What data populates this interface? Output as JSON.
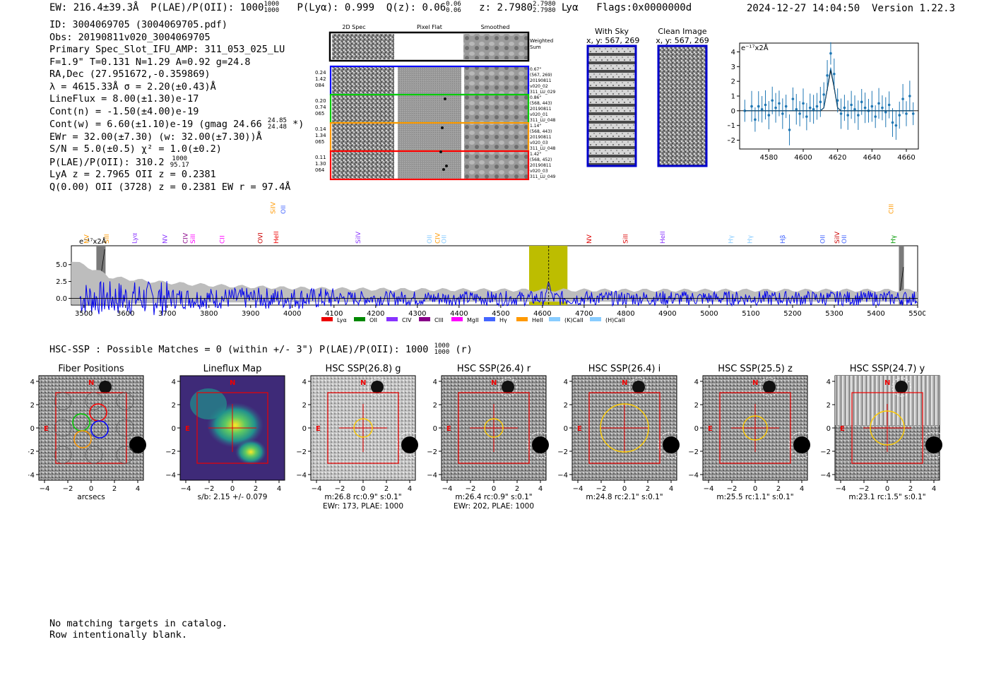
{
  "header": {
    "ew": "EW: 216.4±39.3Å",
    "plae": "P(LAE)/P(OII): 1000",
    "plae_hi": "1000",
    "plae_lo": "1000",
    "plya": "P(Lyα): 0.999",
    "qz": "Q(z): 0.06",
    "qz_hi": "0.06",
    "qz_lo": "0.06",
    "z": "z: 2.7980",
    "z_hi": "2.7980",
    "z_lo": "2.7980",
    "z_line": "Lyα",
    "flags": "Flags:0x0000000d",
    "datetime": "2024-12-27 14:04:50",
    "version": "Version 1.22.3"
  },
  "info": {
    "id": "ID: 3004069705 (3004069705.pdf)",
    "obs": "Obs: 20190811v020_3004069705",
    "primary": "Primary Spec_Slot_IFU_AMP: 311_053_025_LU",
    "fit": "F=1.9\"  T=0.131  N=1.29  A=0.92  g=24.8",
    "radec": "RA,Dec (27.951672,-0.359869)",
    "lambda": "λ = 4615.33Å  σ = 2.20(±0.43)Å",
    "lineflux": "LineFlux = 8.00(±1.30)e-17",
    "contn": "Cont(n) = -1.50(±4.00)e-19",
    "contw": "Cont(w) = 6.60(±1.10)e-19 (gmag 24.66",
    "contw_hi": "24.85",
    "contw_lo": "24.48",
    "contw_end": "*)",
    "ewr": "EWr = 32.00(±7.30) (w: 32.00(±7.30))Å",
    "sn": "S/N = 5.0(±0.5)  χ² = 1.0(±0.2)",
    "plae2": "P(LAE)/P(OII): 310.2",
    "plae2_hi": "1000",
    "plae2_lo": "95.17",
    "lya_z": "LyA z = 2.7965  OII z = 0.2381",
    "q_oii": "Q(0.00) OII (3728) z = 0.2381  EW r = 97.4Å"
  },
  "cutouts": {
    "headers": [
      "2D Spec",
      "Pixel Flat",
      "Smoothed"
    ],
    "weighted_label": "Weighted Sum",
    "rows": [
      {
        "left": [
          "0.24",
          "1.42",
          "084"
        ],
        "right": [
          "0.67\"",
          "(567, 269)",
          "20190811",
          "v020_02",
          "311_LU_029"
        ],
        "color": "#0000ff"
      },
      {
        "left": [
          "0.20",
          "0.74",
          "065"
        ],
        "right": [
          "0.86\"",
          "(568, 443)",
          "20190811",
          "v020_01",
          "311_LU_048"
        ],
        "color": "#00cc00"
      },
      {
        "left": [
          "0.14",
          "1.34",
          "065"
        ],
        "right": [
          "1.14\"",
          "(568, 443)",
          "20190811",
          "v020_03",
          "311_LU_048"
        ],
        "color": "#ff9900"
      },
      {
        "left": [
          "0.11",
          "1.30",
          "064"
        ],
        "right": [
          "1.42\"",
          "(568, 452)",
          "20190811",
          "v020_03",
          "311_LU_049"
        ],
        "color": "#ff0000"
      }
    ],
    "with_sky": "With Sky",
    "with_sky_xy": "x, y: 567, 269",
    "clean": "Clean Image",
    "clean_xy": "x, y: 567, 269"
  },
  "line_fit": {
    "ylabel": "e⁻¹⁷x2Å",
    "xticks": [
      "4580",
      "4600",
      "4620",
      "4640",
      "4660"
    ],
    "yticks": [
      "4",
      "3",
      "2",
      "1",
      "0",
      "−1",
      "−2"
    ]
  },
  "spectrum": {
    "ylabel": "e⁻¹⁷x2Å",
    "xticks": [
      "3500",
      "3600",
      "3700",
      "3800",
      "3900",
      "4000",
      "4100",
      "4200",
      "4300",
      "4400",
      "4500",
      "4600",
      "4700",
      "4800",
      "4900",
      "5000",
      "5100",
      "5200",
      "5300",
      "5400",
      "5500"
    ],
    "yticks": [
      "5.0",
      "2.5",
      "0.0"
    ],
    "line_labels": [
      {
        "t": "NV",
        "c": "#ff9900",
        "w": 3505
      },
      {
        "t": "SiII",
        "c": "#ff9900",
        "w": 3553
      },
      {
        "t": "Lyα",
        "c": "#8833ff",
        "w": 3620
      },
      {
        "t": "NV",
        "c": "#8833ff",
        "w": 3693
      },
      {
        "t": "CIV",
        "c": "#880088",
        "w": 3742
      },
      {
        "t": "SiII",
        "c": "#ff00ff",
        "w": 3760
      },
      {
        "t": "CII",
        "c": "#ff00ff",
        "w": 3830
      },
      {
        "t": "OVI",
        "c": "#cc0000",
        "w": 3922
      },
      {
        "t": "HeII",
        "c": "#ee0000",
        "w": 3960
      },
      {
        "t": "SiIV",
        "c": "#8833ff",
        "w": 4156
      },
      {
        "t": "OII",
        "c": "#88ccff",
        "w": 4327
      },
      {
        "t": "CIV",
        "c": "#ff9900",
        "w": 4347
      },
      {
        "t": "OII",
        "c": "#88ccff",
        "w": 4362
      },
      {
        "t": "NV",
        "c": "#dd0000",
        "w": 4710
      },
      {
        "t": "SiII",
        "c": "#dd0000",
        "w": 4798
      },
      {
        "t": "HeII",
        "c": "#8833ff",
        "w": 4887
      },
      {
        "t": "Hγ",
        "c": "#88ccff",
        "w": 5050
      },
      {
        "t": "Hγ",
        "c": "#88ccff",
        "w": 5096
      },
      {
        "t": "Hβ",
        "c": "#4466ff",
        "w": 5175
      },
      {
        "t": "OII",
        "c": "#4466ff",
        "w": 5270
      },
      {
        "t": "SiIV",
        "c": "#cc0000",
        "w": 5305
      },
      {
        "t": "OII",
        "c": "#4466ff",
        "w": 5322
      },
      {
        "t": "Hγ",
        "c": "#009900",
        "w": 5440
      }
    ],
    "upper_labels": [
      {
        "t": "SiIV",
        "c": "#ff9900",
        "w": 3952
      },
      {
        "t": "OII",
        "c": "#4466ff",
        "w": 3977
      },
      {
        "t": "CIII",
        "c": "#ff9900",
        "w": 5435
      }
    ],
    "legend": [
      {
        "t": "Lyα",
        "c": "#ee0000"
      },
      {
        "t": "OII",
        "c": "#008800"
      },
      {
        "t": "CIV",
        "c": "#8833ff"
      },
      {
        "t": "CIII",
        "c": "#880088"
      },
      {
        "t": "MgII",
        "c": "#ff00ff"
      },
      {
        "t": "Hγ",
        "c": "#4466ff"
      },
      {
        "t": "HeII",
        "c": "#ff9900"
      },
      {
        "t": "(K)CaII",
        "c": "#88ccff"
      },
      {
        "t": "(H)CaII",
        "c": "#88ccff"
      }
    ]
  },
  "hsc": {
    "line": "HSC-SSP : Possible Matches = 0 (within +/- 3\")  P(LAE)/P(OII): 1000",
    "line_hi": "1000",
    "line_lo": "1000",
    "line_end": "(r)",
    "panels": [
      {
        "title": "Fiber Positions",
        "cap1": "arcsecs",
        "cap2": ""
      },
      {
        "title": "Lineflux Map",
        "cap1": "s/b: 2.15 +/- 0.079",
        "cap2": ""
      },
      {
        "title": "HSC SSP(26.8) g",
        "cap1": "m:26.8 rc:0.9\"  s:0.1\"",
        "cap2": "EWr: 173, PLAE: 1000"
      },
      {
        "title": "HSC SSP(26.4) r",
        "cap1": "m:26.4 rc:0.9\"  s:0.1\"",
        "cap2": "EWr: 202, PLAE: 1000"
      },
      {
        "title": "HSC SSP(26.4) i",
        "cap1": "m:24.8 rc:2.1\"  s:0.1\"",
        "cap2": ""
      },
      {
        "title": "HSC SSP(25.5) z",
        "cap1": "m:25.5 rc:1.1\"  s:0.1\"",
        "cap2": ""
      },
      {
        "title": "HSC SSP(24.7) y",
        "cap1": "m:23.1 rc:1.5\"  s:0.1\"",
        "cap2": ""
      }
    ],
    "ticks": [
      "4",
      "2",
      "0",
      "−2",
      "−4"
    ],
    "xticks": [
      "−4",
      "−2",
      "0",
      "2",
      "4"
    ],
    "north": "N",
    "east": "E"
  },
  "footer": {
    "line1": "No matching targets in catalog.",
    "line2": "Row intentionally blank."
  },
  "chart_data": [
    {
      "type": "line",
      "x": [
        4566,
        4570,
        4572,
        4574,
        4576,
        4578,
        4580,
        4582,
        4584,
        4586,
        4588,
        4590,
        4592,
        4594,
        4596,
        4598,
        4600,
        4602,
        4604,
        4606,
        4608,
        4610,
        4612,
        4614,
        4616,
        4618,
        4620,
        4622,
        4624,
        4626,
        4628,
        4630,
        4632,
        4634,
        4636,
        4638,
        4640,
        4642,
        4644,
        4646,
        4648,
        4650,
        4652,
        4654,
        4656,
        4658,
        4660,
        4662,
        4664
      ],
      "series": [
        {
          "values": [
            0.0,
            0.3,
            -0.6,
            0.3,
            0.1,
            0.4,
            -0.3,
            0.7,
            0.2,
            0.5,
            -0.2,
            0.3,
            -1.3,
            0.8,
            0.1,
            -0.2,
            0.5,
            -0.4,
            0.2,
            0.1,
            0.3,
            0.6,
            1.1,
            2.4,
            3.9,
            2.5,
            0.7,
            -0.2,
            0.2,
            -0.3,
            0.4,
            0.1,
            -0.3,
            0.6,
            0.2,
            0.0,
            0.3,
            -0.4,
            0.5,
            0.2,
            -0.1,
            0.4,
            -0.8,
            -1.0,
            -0.3,
            0.8,
            -0.2,
            1.0,
            -0.2
          ]
        },
        {
          "values": [
            0,
            0,
            0,
            0,
            0,
            0,
            0,
            0,
            0,
            0,
            0,
            0,
            0,
            0,
            0,
            0,
            0,
            0,
            0,
            0,
            0,
            0,
            0.2,
            1.5,
            2.8,
            1.6,
            0.2,
            0,
            0,
            0,
            0,
            0,
            0,
            0,
            0,
            0,
            0,
            0,
            0,
            0,
            0,
            0,
            0,
            0,
            0,
            0,
            0,
            0,
            0
          ]
        }
      ],
      "xlim": [
        4563,
        4667
      ],
      "ylim": [
        -2.6,
        4.6
      ],
      "ylabel": "e⁻¹⁷x2Å"
    },
    {
      "type": "line",
      "xlim": [
        3470,
        5500
      ],
      "ylim": [
        -1.0,
        7.8
      ],
      "ylabel": "e⁻¹⁷x2Å",
      "highlight_range": [
        4568,
        4660
      ],
      "line_center": 4615
    }
  ]
}
